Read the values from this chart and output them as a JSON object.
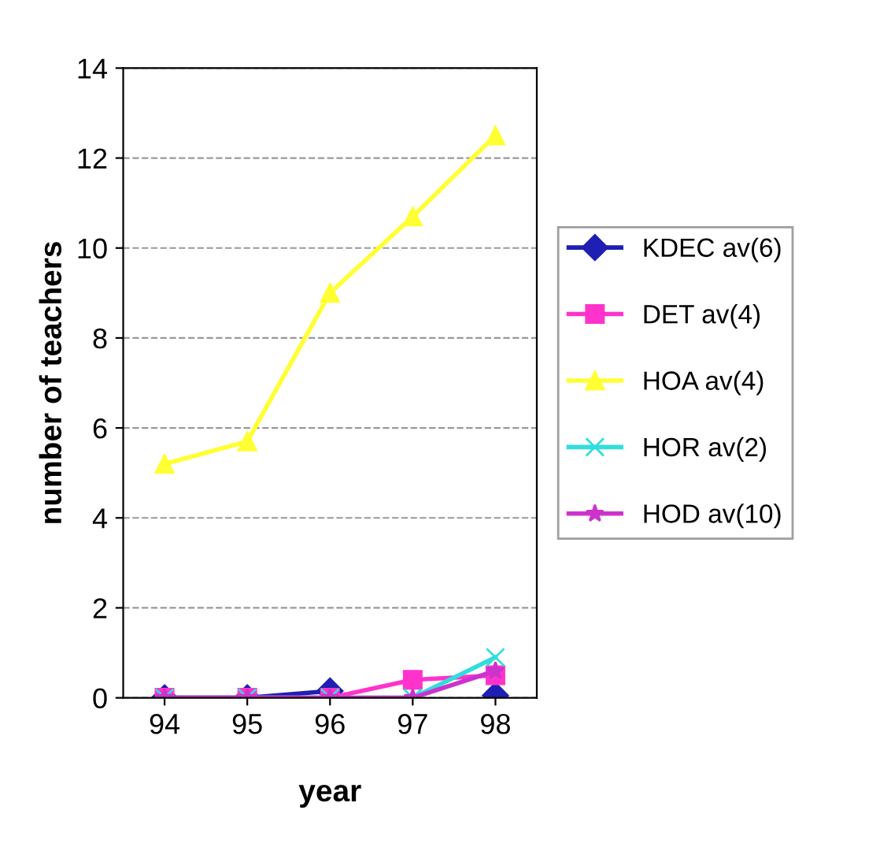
{
  "chart_data": {
    "type": "line",
    "xlabel": "year",
    "ylabel": "number of teachers",
    "categories": [
      "94",
      "95",
      "96",
      "97",
      "98"
    ],
    "series": [
      {
        "name": "KDEC av(6)",
        "color": "#1f1fb4",
        "marker": "diamond",
        "values": [
          0,
          0,
          0.15,
          null,
          0.05
        ]
      },
      {
        "name": "DET av(4)",
        "color": "#ff33cc",
        "marker": "square",
        "values": [
          0,
          0,
          0,
          0.4,
          0.5
        ]
      },
      {
        "name": "HOA av(4)",
        "color": "#ffff33",
        "marker": "triangle",
        "values": [
          5.2,
          5.7,
          9.0,
          10.7,
          12.5
        ]
      },
      {
        "name": "HOR av(2)",
        "color": "#33dddd",
        "marker": "cross",
        "values": [
          0,
          0,
          0,
          0,
          0.9
        ]
      },
      {
        "name": "HOD av(10)",
        "color": "#cc33cc",
        "marker": "star",
        "values": [
          0,
          0,
          0,
          0,
          0.6
        ]
      }
    ],
    "ylim": [
      0,
      14
    ],
    "yticks": [
      0,
      2,
      4,
      6,
      8,
      10,
      12,
      14
    ],
    "grid": "y",
    "legend": "right"
  }
}
